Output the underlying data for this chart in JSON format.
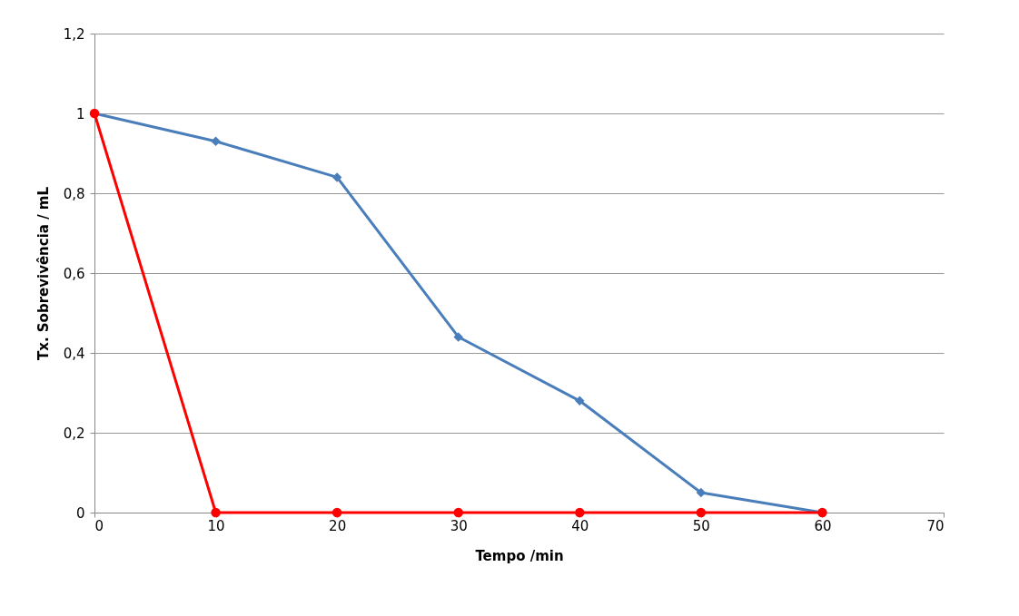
{
  "chart_data": {
    "type": "line",
    "xlabel": "Tempo /min",
    "ylabel": "Tx. Sobrevivência / mL",
    "xlim": [
      0,
      70
    ],
    "xticks": [
      0,
      10,
      20,
      30,
      40,
      50,
      60,
      70
    ],
    "ylim": [
      0,
      1.2
    ],
    "yticks": [
      0,
      {
        "value": 0.2,
        "label": "0,2"
      },
      {
        "value": 0.4,
        "label": "0,4"
      },
      {
        "value": 0.6,
        "label": "0,6"
      },
      {
        "value": 0.8,
        "label": "0,8"
      },
      1,
      {
        "value": 1.2,
        "label": "1,2"
      }
    ],
    "grid": "y",
    "series": [
      {
        "color": "#4a7ebb",
        "marker": "diamond",
        "x": [
          0,
          10,
          20,
          30,
          40,
          50,
          60
        ],
        "values": [
          1,
          0.93,
          0.84,
          0.44,
          0.28,
          0.05,
          0
        ]
      },
      {
        "color": "#ff0000",
        "marker": "circle",
        "x": [
          0,
          10,
          20,
          30,
          40,
          50,
          60
        ],
        "values": [
          1,
          0,
          0,
          0,
          0,
          0,
          0
        ]
      }
    ]
  }
}
